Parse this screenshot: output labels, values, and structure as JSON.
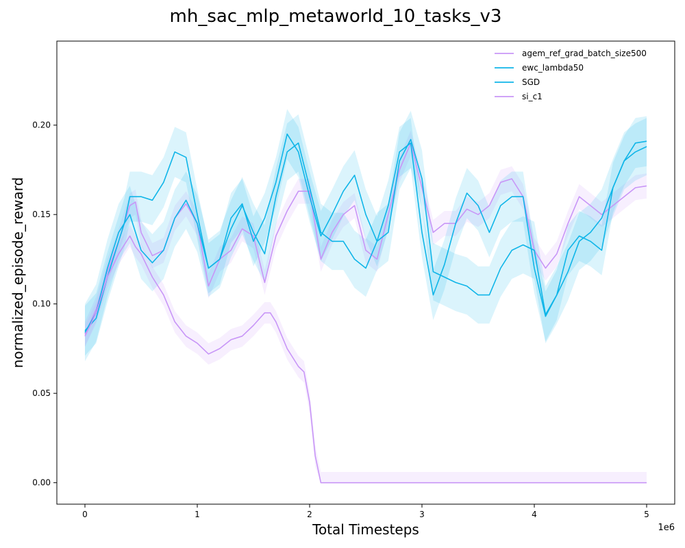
{
  "chart_data": {
    "type": "line",
    "title": "mh_sac_mlp_metaworld_10_tasks_v3",
    "xlabel": "Total Timesteps",
    "ylabel": "normalized_episode_reward",
    "x_scale_label": "1e6",
    "xlim": [
      -0.25,
      5.25
    ],
    "ylim": [
      -0.012,
      0.247
    ],
    "x_ticks": [
      0,
      1,
      2,
      3,
      4,
      5
    ],
    "x_tick_labels": [
      "0",
      "1",
      "2",
      "3",
      "4",
      "5"
    ],
    "y_ticks": [
      0.0,
      0.05,
      0.1,
      0.15,
      0.2
    ],
    "y_tick_labels": [
      "0.00",
      "0.05",
      "0.10",
      "0.15",
      "0.20"
    ],
    "grid": false,
    "legend_position": "top-right",
    "series": [
      {
        "name": "agem_ref_grad_batch_size500",
        "color": "#c896f7",
        "x": [
          0,
          0.1,
          0.2,
          0.3,
          0.4,
          0.45,
          0.5,
          0.6,
          0.7,
          0.8,
          0.9,
          1.0,
          1.1,
          1.2,
          1.3,
          1.4,
          1.5,
          1.6,
          1.7,
          1.8,
          1.9,
          2.0,
          2.1,
          2.2,
          2.3,
          2.4,
          2.5,
          2.6,
          2.7,
          2.8,
          2.9,
          3.0,
          3.1,
          3.2,
          3.3,
          3.4,
          3.5,
          3.6,
          3.7,
          3.8,
          3.9,
          4.0,
          4.1,
          4.2,
          4.3,
          4.4,
          4.5,
          4.6,
          4.7,
          4.8,
          4.9,
          5.0
        ],
        "y": [
          0.083,
          0.097,
          0.118,
          0.135,
          0.155,
          0.157,
          0.14,
          0.127,
          0.13,
          0.148,
          0.156,
          0.145,
          0.11,
          0.125,
          0.13,
          0.142,
          0.138,
          0.112,
          0.138,
          0.152,
          0.163,
          0.163,
          0.125,
          0.14,
          0.15,
          0.155,
          0.13,
          0.125,
          0.15,
          0.175,
          0.19,
          0.165,
          0.14,
          0.145,
          0.145,
          0.153,
          0.15,
          0.155,
          0.168,
          0.17,
          0.16,
          0.13,
          0.12,
          0.128,
          0.145,
          0.16,
          0.155,
          0.15,
          0.155,
          0.16,
          0.165,
          0.166
        ],
        "band": 0.007
      },
      {
        "name": "ewc_lambda50",
        "color": "#0fb5e8",
        "x": [
          0,
          0.1,
          0.2,
          0.3,
          0.35,
          0.4,
          0.5,
          0.6,
          0.7,
          0.8,
          0.9,
          1.0,
          1.1,
          1.2,
          1.3,
          1.4,
          1.5,
          1.6,
          1.7,
          1.8,
          1.9,
          2.0,
          2.1,
          2.2,
          2.3,
          2.4,
          2.5,
          2.6,
          2.7,
          2.8,
          2.9,
          3.0,
          3.1,
          3.2,
          3.3,
          3.4,
          3.5,
          3.6,
          3.7,
          3.8,
          3.9,
          4.0,
          4.1,
          4.2,
          4.3,
          4.4,
          4.5,
          4.6,
          4.7,
          4.8,
          4.9,
          5.0
        ],
        "y": [
          0.085,
          0.092,
          0.115,
          0.135,
          0.145,
          0.16,
          0.16,
          0.158,
          0.168,
          0.185,
          0.182,
          0.15,
          0.12,
          0.125,
          0.148,
          0.156,
          0.135,
          0.148,
          0.168,
          0.195,
          0.185,
          0.16,
          0.138,
          0.15,
          0.163,
          0.172,
          0.15,
          0.135,
          0.155,
          0.185,
          0.19,
          0.14,
          0.105,
          0.122,
          0.145,
          0.162,
          0.155,
          0.14,
          0.155,
          0.16,
          0.16,
          0.12,
          0.093,
          0.105,
          0.13,
          0.138,
          0.135,
          0.13,
          0.165,
          0.18,
          0.19,
          0.191
        ],
        "band": 0.014
      },
      {
        "name": "SGD",
        "color": "#0fb5e8",
        "x": [
          0,
          0.1,
          0.2,
          0.3,
          0.4,
          0.45,
          0.5,
          0.6,
          0.7,
          0.8,
          0.9,
          1.0,
          1.1,
          1.2,
          1.3,
          1.4,
          1.5,
          1.6,
          1.7,
          1.8,
          1.9,
          2.0,
          2.1,
          2.2,
          2.3,
          2.4,
          2.5,
          2.6,
          2.7,
          2.8,
          2.9,
          3.0,
          3.1,
          3.2,
          3.3,
          3.4,
          3.5,
          3.6,
          3.7,
          3.8,
          3.9,
          4.0,
          4.1,
          4.2,
          4.3,
          4.4,
          4.5,
          4.6,
          4.7,
          4.8,
          4.9,
          5.0
        ],
        "y": [
          0.084,
          0.095,
          0.12,
          0.14,
          0.15,
          0.14,
          0.13,
          0.123,
          0.13,
          0.148,
          0.158,
          0.145,
          0.12,
          0.125,
          0.142,
          0.155,
          0.14,
          0.128,
          0.16,
          0.185,
          0.19,
          0.165,
          0.14,
          0.135,
          0.135,
          0.125,
          0.12,
          0.135,
          0.14,
          0.18,
          0.192,
          0.17,
          0.118,
          0.115,
          0.112,
          0.11,
          0.105,
          0.105,
          0.12,
          0.13,
          0.133,
          0.13,
          0.094,
          0.105,
          0.118,
          0.135,
          0.14,
          0.148,
          0.165,
          0.18,
          0.185,
          0.188
        ],
        "band": 0.016
      },
      {
        "name": "si_c1",
        "color": "#c896f7",
        "x": [
          0,
          0.1,
          0.2,
          0.3,
          0.4,
          0.45,
          0.5,
          0.6,
          0.7,
          0.8,
          0.9,
          1.0,
          1.1,
          1.2,
          1.3,
          1.4,
          1.5,
          1.6,
          1.65,
          1.7,
          1.8,
          1.9,
          1.95,
          2.0,
          2.05,
          2.1,
          2.2,
          2.5,
          3.0,
          3.5,
          4.0,
          4.5,
          5.0
        ],
        "y": [
          0.082,
          0.095,
          0.115,
          0.128,
          0.138,
          0.132,
          0.128,
          0.115,
          0.105,
          0.09,
          0.082,
          0.078,
          0.072,
          0.075,
          0.08,
          0.082,
          0.088,
          0.095,
          0.095,
          0.09,
          0.075,
          0.065,
          0.062,
          0.045,
          0.015,
          0.0,
          0.0,
          0.0,
          0.0,
          0.0,
          0.0,
          0.0,
          0.0
        ],
        "band": 0.006
      }
    ]
  }
}
